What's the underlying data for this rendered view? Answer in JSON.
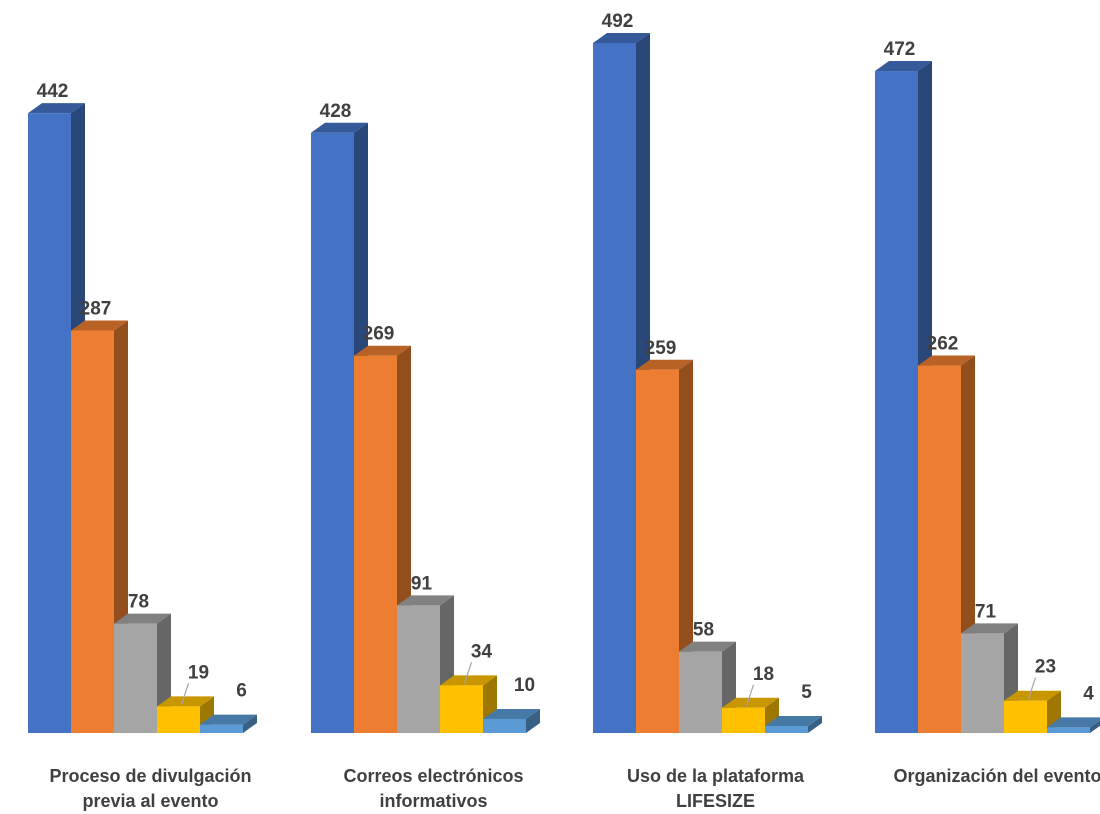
{
  "chart_data": {
    "type": "bar",
    "three_d": true,
    "categories": [
      [
        "Proceso de divulgación",
        "previa al evento"
      ],
      [
        "Correos electrónicos",
        "informativos"
      ],
      [
        "Uso de la plataforma",
        "LIFESIZE"
      ],
      [
        "Organización del evento"
      ]
    ],
    "series": [
      {
        "values": [
          442,
          428,
          492,
          472
        ],
        "color": "#4472C4"
      },
      {
        "values": [
          287,
          269,
          259,
          262
        ],
        "color": "#ED7D31"
      },
      {
        "values": [
          78,
          91,
          58,
          71
        ],
        "color": "#A5A5A5"
      },
      {
        "values": [
          19,
          34,
          18,
          23
        ],
        "color": "#FFC000"
      },
      {
        "values": [
          6,
          10,
          5,
          4
        ],
        "color": "#5B9BD5"
      }
    ],
    "ylim": [
      0,
      492
    ],
    "grid": false,
    "legend": "none",
    "data_labels": true
  }
}
